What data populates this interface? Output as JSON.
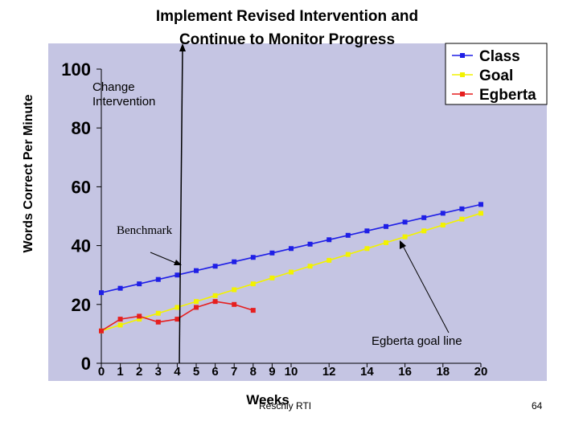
{
  "chart_data": {
    "type": "line",
    "title": [
      "Implement Revised Intervention and",
      "Continue to Monitor Progress"
    ],
    "xlabel": "Weeks",
    "ylabel": "Words Correct Per Minute",
    "ylim": [
      0,
      100
    ],
    "xlim": [
      0,
      20
    ],
    "y_ticks": [
      "0",
      "20",
      "40",
      "60",
      "80",
      "100"
    ],
    "x_ticks": [
      "0",
      "1",
      "2",
      "3",
      "4",
      "5",
      "6",
      "7",
      "8",
      "9",
      "10",
      "12",
      "14",
      "16",
      "18",
      "20"
    ],
    "legend_position": "top-right",
    "grid": false,
    "colors": {
      "plot_bg": "#c5c5e3",
      "class": "#1f1fe6",
      "goal": "#f2f200",
      "egberta": "#e61f1f"
    },
    "series": [
      {
        "name": "Class",
        "x": [
          0,
          1,
          2,
          3,
          4,
          5,
          6,
          7,
          8,
          9,
          10,
          11,
          12,
          13,
          14,
          15,
          16,
          17,
          18,
          19,
          20
        ],
        "values": [
          24,
          25.5,
          27,
          28.5,
          30,
          31.5,
          33,
          34.5,
          36,
          37.5,
          39,
          40.5,
          42,
          43.5,
          45,
          46.5,
          48,
          49.5,
          51,
          52.5,
          54
        ]
      },
      {
        "name": "Goal",
        "x": [
          0,
          1,
          2,
          3,
          4,
          5,
          6,
          7,
          8,
          9,
          10,
          11,
          12,
          13,
          14,
          15,
          16,
          17,
          18,
          19,
          20
        ],
        "values": [
          11,
          13,
          15,
          17,
          19,
          21,
          23,
          25,
          27,
          29,
          31,
          33,
          35,
          37,
          39,
          41,
          43,
          45,
          47,
          49,
          51
        ]
      },
      {
        "name": "Egberta",
        "x": [
          0,
          1,
          2,
          3,
          4,
          5,
          6,
          7,
          8
        ],
        "values": [
          11,
          15,
          16,
          14,
          15,
          19,
          21,
          20,
          18
        ]
      }
    ],
    "annotations": {
      "change_intervention": "Change Intervention",
      "benchmark": "Benchmark",
      "goal_line": "Egberta goal line"
    }
  },
  "footer": {
    "source": "Reschly RTI",
    "page_number": "64"
  }
}
